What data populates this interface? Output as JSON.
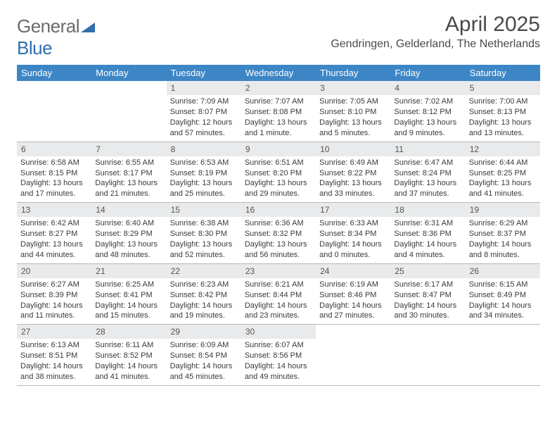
{
  "logo": {
    "text1": "General",
    "text2": "Blue"
  },
  "header": {
    "month_title": "April 2025",
    "location": "Gendringen, Gelderland, The Netherlands"
  },
  "colors": {
    "header_bg": "#3d86c6",
    "header_text": "#ffffff",
    "daynum_bg": "#e9eaeb",
    "border": "#b8b8b8",
    "text": "#3a3a3a",
    "logo_accent": "#2f6fad"
  },
  "calendar": {
    "type": "table",
    "day_names": [
      "Sunday",
      "Monday",
      "Tuesday",
      "Wednesday",
      "Thursday",
      "Friday",
      "Saturday"
    ],
    "weeks": [
      [
        {
          "day": "",
          "sunrise": "",
          "sunset": "",
          "daylight1": "",
          "daylight2": ""
        },
        {
          "day": "",
          "sunrise": "",
          "sunset": "",
          "daylight1": "",
          "daylight2": ""
        },
        {
          "day": "1",
          "sunrise": "Sunrise: 7:09 AM",
          "sunset": "Sunset: 8:07 PM",
          "daylight1": "Daylight: 12 hours",
          "daylight2": "and 57 minutes."
        },
        {
          "day": "2",
          "sunrise": "Sunrise: 7:07 AM",
          "sunset": "Sunset: 8:08 PM",
          "daylight1": "Daylight: 13 hours",
          "daylight2": "and 1 minute."
        },
        {
          "day": "3",
          "sunrise": "Sunrise: 7:05 AM",
          "sunset": "Sunset: 8:10 PM",
          "daylight1": "Daylight: 13 hours",
          "daylight2": "and 5 minutes."
        },
        {
          "day": "4",
          "sunrise": "Sunrise: 7:02 AM",
          "sunset": "Sunset: 8:12 PM",
          "daylight1": "Daylight: 13 hours",
          "daylight2": "and 9 minutes."
        },
        {
          "day": "5",
          "sunrise": "Sunrise: 7:00 AM",
          "sunset": "Sunset: 8:13 PM",
          "daylight1": "Daylight: 13 hours",
          "daylight2": "and 13 minutes."
        }
      ],
      [
        {
          "day": "6",
          "sunrise": "Sunrise: 6:58 AM",
          "sunset": "Sunset: 8:15 PM",
          "daylight1": "Daylight: 13 hours",
          "daylight2": "and 17 minutes."
        },
        {
          "day": "7",
          "sunrise": "Sunrise: 6:55 AM",
          "sunset": "Sunset: 8:17 PM",
          "daylight1": "Daylight: 13 hours",
          "daylight2": "and 21 minutes."
        },
        {
          "day": "8",
          "sunrise": "Sunrise: 6:53 AM",
          "sunset": "Sunset: 8:19 PM",
          "daylight1": "Daylight: 13 hours",
          "daylight2": "and 25 minutes."
        },
        {
          "day": "9",
          "sunrise": "Sunrise: 6:51 AM",
          "sunset": "Sunset: 8:20 PM",
          "daylight1": "Daylight: 13 hours",
          "daylight2": "and 29 minutes."
        },
        {
          "day": "10",
          "sunrise": "Sunrise: 6:49 AM",
          "sunset": "Sunset: 8:22 PM",
          "daylight1": "Daylight: 13 hours",
          "daylight2": "and 33 minutes."
        },
        {
          "day": "11",
          "sunrise": "Sunrise: 6:47 AM",
          "sunset": "Sunset: 8:24 PM",
          "daylight1": "Daylight: 13 hours",
          "daylight2": "and 37 minutes."
        },
        {
          "day": "12",
          "sunrise": "Sunrise: 6:44 AM",
          "sunset": "Sunset: 8:25 PM",
          "daylight1": "Daylight: 13 hours",
          "daylight2": "and 41 minutes."
        }
      ],
      [
        {
          "day": "13",
          "sunrise": "Sunrise: 6:42 AM",
          "sunset": "Sunset: 8:27 PM",
          "daylight1": "Daylight: 13 hours",
          "daylight2": "and 44 minutes."
        },
        {
          "day": "14",
          "sunrise": "Sunrise: 6:40 AM",
          "sunset": "Sunset: 8:29 PM",
          "daylight1": "Daylight: 13 hours",
          "daylight2": "and 48 minutes."
        },
        {
          "day": "15",
          "sunrise": "Sunrise: 6:38 AM",
          "sunset": "Sunset: 8:30 PM",
          "daylight1": "Daylight: 13 hours",
          "daylight2": "and 52 minutes."
        },
        {
          "day": "16",
          "sunrise": "Sunrise: 6:36 AM",
          "sunset": "Sunset: 8:32 PM",
          "daylight1": "Daylight: 13 hours",
          "daylight2": "and 56 minutes."
        },
        {
          "day": "17",
          "sunrise": "Sunrise: 6:33 AM",
          "sunset": "Sunset: 8:34 PM",
          "daylight1": "Daylight: 14 hours",
          "daylight2": "and 0 minutes."
        },
        {
          "day": "18",
          "sunrise": "Sunrise: 6:31 AM",
          "sunset": "Sunset: 8:36 PM",
          "daylight1": "Daylight: 14 hours",
          "daylight2": "and 4 minutes."
        },
        {
          "day": "19",
          "sunrise": "Sunrise: 6:29 AM",
          "sunset": "Sunset: 8:37 PM",
          "daylight1": "Daylight: 14 hours",
          "daylight2": "and 8 minutes."
        }
      ],
      [
        {
          "day": "20",
          "sunrise": "Sunrise: 6:27 AM",
          "sunset": "Sunset: 8:39 PM",
          "daylight1": "Daylight: 14 hours",
          "daylight2": "and 11 minutes."
        },
        {
          "day": "21",
          "sunrise": "Sunrise: 6:25 AM",
          "sunset": "Sunset: 8:41 PM",
          "daylight1": "Daylight: 14 hours",
          "daylight2": "and 15 minutes."
        },
        {
          "day": "22",
          "sunrise": "Sunrise: 6:23 AM",
          "sunset": "Sunset: 8:42 PM",
          "daylight1": "Daylight: 14 hours",
          "daylight2": "and 19 minutes."
        },
        {
          "day": "23",
          "sunrise": "Sunrise: 6:21 AM",
          "sunset": "Sunset: 8:44 PM",
          "daylight1": "Daylight: 14 hours",
          "daylight2": "and 23 minutes."
        },
        {
          "day": "24",
          "sunrise": "Sunrise: 6:19 AM",
          "sunset": "Sunset: 8:46 PM",
          "daylight1": "Daylight: 14 hours",
          "daylight2": "and 27 minutes."
        },
        {
          "day": "25",
          "sunrise": "Sunrise: 6:17 AM",
          "sunset": "Sunset: 8:47 PM",
          "daylight1": "Daylight: 14 hours",
          "daylight2": "and 30 minutes."
        },
        {
          "day": "26",
          "sunrise": "Sunrise: 6:15 AM",
          "sunset": "Sunset: 8:49 PM",
          "daylight1": "Daylight: 14 hours",
          "daylight2": "and 34 minutes."
        }
      ],
      [
        {
          "day": "27",
          "sunrise": "Sunrise: 6:13 AM",
          "sunset": "Sunset: 8:51 PM",
          "daylight1": "Daylight: 14 hours",
          "daylight2": "and 38 minutes."
        },
        {
          "day": "28",
          "sunrise": "Sunrise: 6:11 AM",
          "sunset": "Sunset: 8:52 PM",
          "daylight1": "Daylight: 14 hours",
          "daylight2": "and 41 minutes."
        },
        {
          "day": "29",
          "sunrise": "Sunrise: 6:09 AM",
          "sunset": "Sunset: 8:54 PM",
          "daylight1": "Daylight: 14 hours",
          "daylight2": "and 45 minutes."
        },
        {
          "day": "30",
          "sunrise": "Sunrise: 6:07 AM",
          "sunset": "Sunset: 8:56 PM",
          "daylight1": "Daylight: 14 hours",
          "daylight2": "and 49 minutes."
        },
        {
          "day": "",
          "sunrise": "",
          "sunset": "",
          "daylight1": "",
          "daylight2": ""
        },
        {
          "day": "",
          "sunrise": "",
          "sunset": "",
          "daylight1": "",
          "daylight2": ""
        },
        {
          "day": "",
          "sunrise": "",
          "sunset": "",
          "daylight1": "",
          "daylight2": ""
        }
      ]
    ]
  }
}
